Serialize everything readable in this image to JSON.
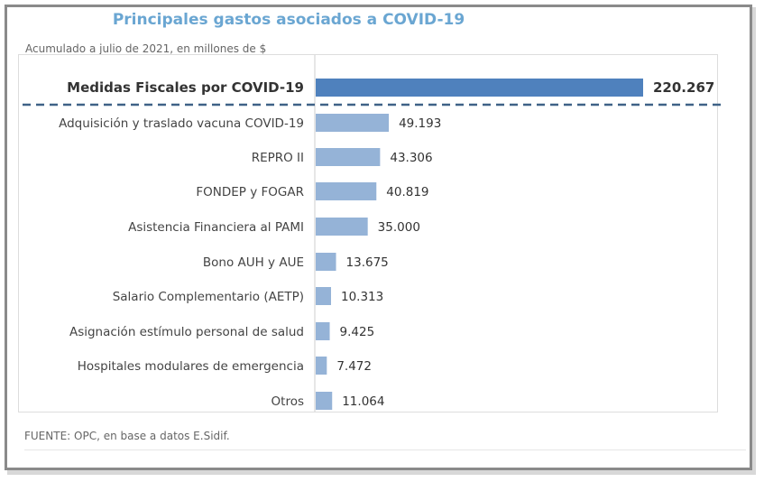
{
  "chart_data": {
    "type": "bar",
    "orientation": "horizontal",
    "title": "Principales gastos asociados a COVID-19",
    "subtitle": "Acumulado a julio de 2021, en millones de $",
    "source": "FUENTE:  OPC,  en base  a datos  E.Sidif.",
    "categories": [
      "Medidas Fiscales por COVID-19",
      "Adquisición y traslado vacuna COVID-19",
      "REPRO II",
      "FONDEP y FOGAR",
      "Asistencia Financiera al PAMI",
      "Bono AUH y AUE",
      "Salario Complementario (AETP)",
      "Asignación estímulo personal de salud",
      "Hospitales modulares de emergencia",
      "Otros"
    ],
    "values": [
      220267,
      49193,
      43306,
      40819,
      35000,
      13675,
      10313,
      9425,
      7472,
      11064
    ],
    "labels": [
      "220.267",
      "49.193",
      "43.306",
      "40.819",
      "35.000",
      "13.675",
      "10.313",
      "9.425",
      "7.472",
      "11.064"
    ],
    "highlight_index": 0,
    "xlim": [
      0,
      220267
    ],
    "grid": false,
    "legend": "none",
    "colors": {
      "highlight": "#4f81bd",
      "bar": "#95b3d7",
      "title": "#6aa6d2",
      "dash": "#3f6287"
    }
  }
}
